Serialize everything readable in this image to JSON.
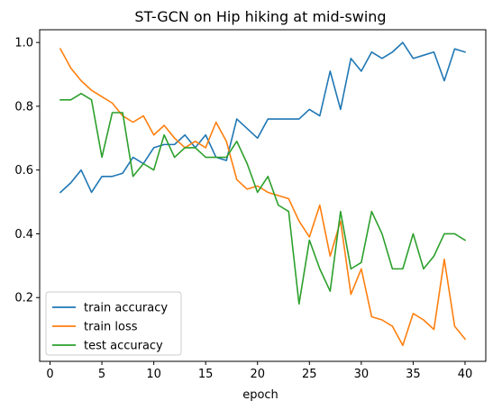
{
  "chart_data": {
    "type": "line",
    "title": "ST-GCN on Hip hiking at mid-swing",
    "xlabel": "epoch",
    "ylabel": "",
    "xlim": [
      -1,
      42
    ],
    "ylim": [
      0.0,
      1.04
    ],
    "xticks": [
      0,
      5,
      10,
      15,
      20,
      25,
      30,
      35,
      40
    ],
    "yticks": [
      0.2,
      0.4,
      0.6,
      0.8,
      1.0
    ],
    "ytick_labels": [
      "0.2",
      "0.4",
      "0.6",
      "0.8",
      "1.0"
    ],
    "grid": false,
    "legend_position": "lower-left",
    "x": [
      1,
      2,
      3,
      4,
      5,
      6,
      7,
      8,
      9,
      10,
      11,
      12,
      13,
      14,
      15,
      16,
      17,
      18,
      19,
      20,
      21,
      22,
      23,
      24,
      25,
      26,
      27,
      28,
      29,
      30,
      31,
      32,
      33,
      34,
      35,
      36,
      37,
      38,
      39,
      40
    ],
    "series": [
      {
        "name": "train accuracy",
        "color": "#1f77b4",
        "values": [
          0.53,
          0.56,
          0.6,
          0.53,
          0.58,
          0.58,
          0.59,
          0.64,
          0.62,
          0.67,
          0.68,
          0.68,
          0.71,
          0.67,
          0.71,
          0.64,
          0.63,
          0.76,
          0.73,
          0.7,
          0.76,
          0.76,
          0.76,
          0.76,
          0.79,
          0.77,
          0.91,
          0.79,
          0.95,
          0.91,
          0.97,
          0.95,
          0.97,
          1.0,
          0.95,
          0.96,
          0.97,
          0.88,
          0.98,
          0.97
        ]
      },
      {
        "name": "train loss",
        "color": "#ff7f0e",
        "values": [
          0.98,
          0.92,
          0.88,
          0.85,
          0.83,
          0.81,
          0.77,
          0.75,
          0.77,
          0.71,
          0.74,
          0.7,
          0.67,
          0.69,
          0.67,
          0.75,
          0.69,
          0.57,
          0.54,
          0.55,
          0.53,
          0.52,
          0.51,
          0.44,
          0.39,
          0.49,
          0.33,
          0.44,
          0.21,
          0.29,
          0.14,
          0.13,
          0.11,
          0.05,
          0.15,
          0.13,
          0.1,
          0.32,
          0.11,
          0.07
        ]
      },
      {
        "name": "test accuracy",
        "color": "#2ca02c",
        "values": [
          0.82,
          0.82,
          0.84,
          0.82,
          0.64,
          0.78,
          0.78,
          0.58,
          0.62,
          0.6,
          0.71,
          0.64,
          0.67,
          0.67,
          0.64,
          0.64,
          0.64,
          0.69,
          0.62,
          0.53,
          0.58,
          0.49,
          0.47,
          0.18,
          0.38,
          0.29,
          0.22,
          0.47,
          0.29,
          0.31,
          0.47,
          0.4,
          0.29,
          0.29,
          0.4,
          0.29,
          0.33,
          0.4,
          0.4,
          0.38
        ]
      }
    ]
  }
}
